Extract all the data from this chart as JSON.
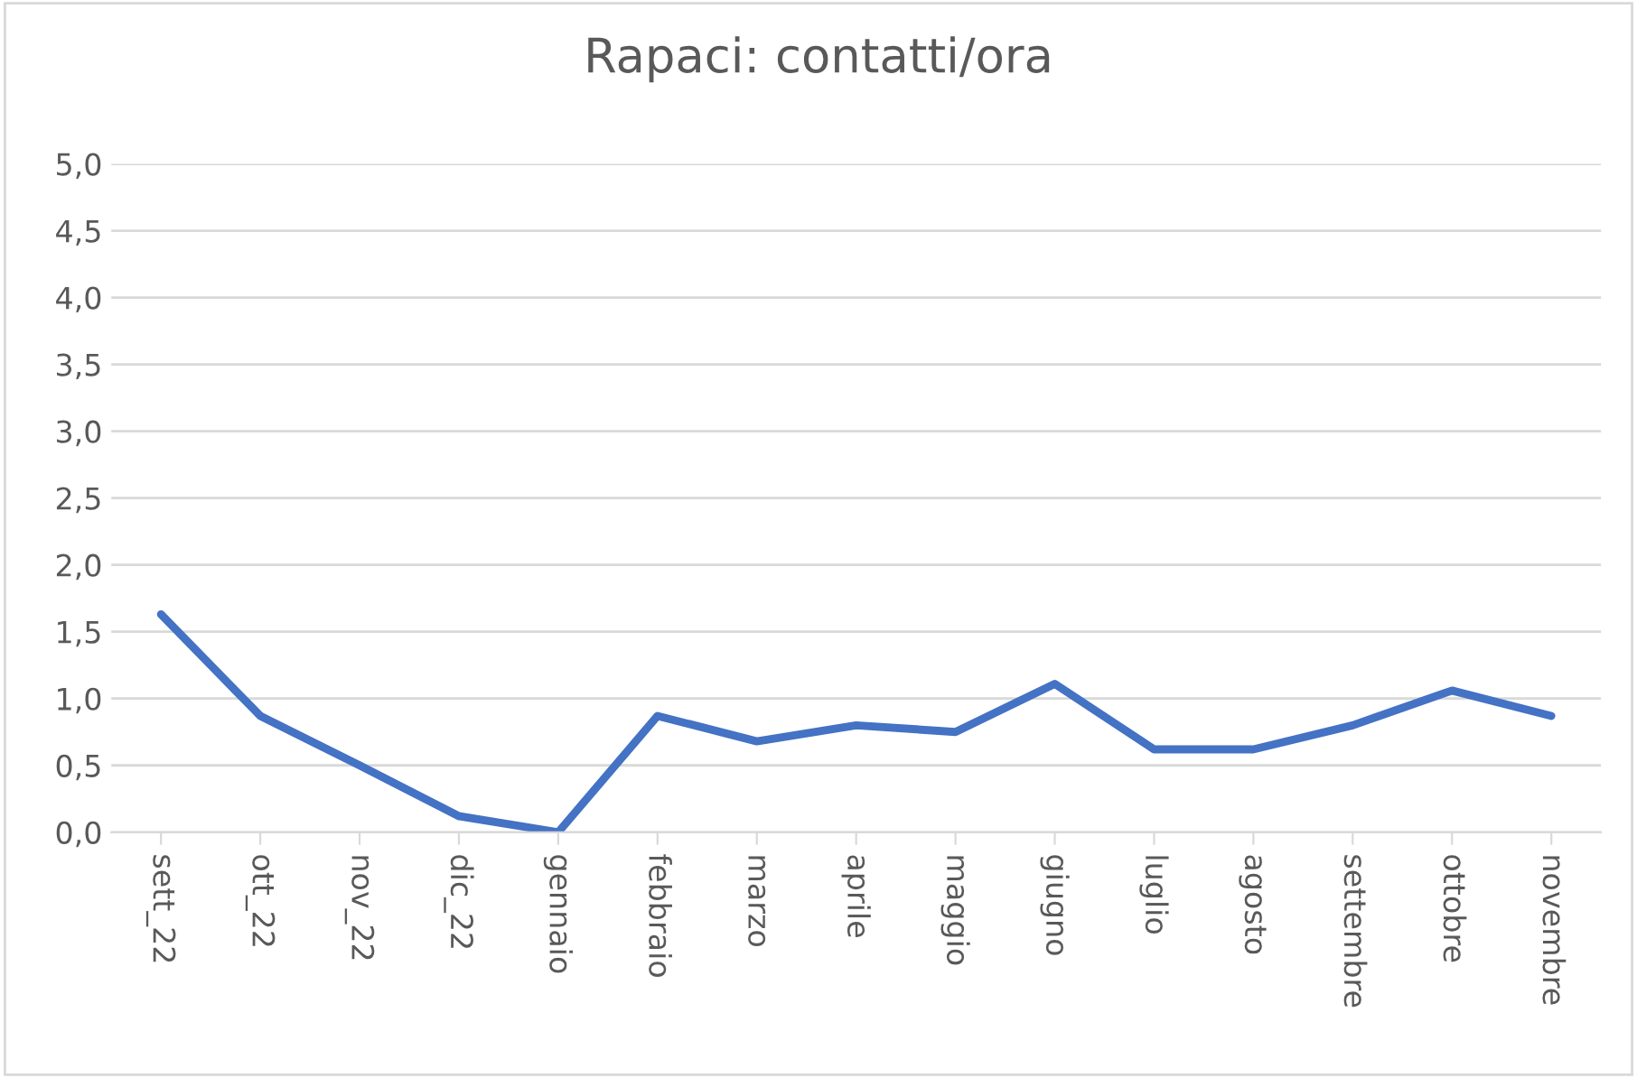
{
  "chart_data": {
    "type": "line",
    "title": "Rapaci: contatti/ora",
    "categories": [
      "sett_22",
      "ott_22",
      "nov_22",
      "dic_22",
      "gennaio",
      "febbraio",
      "marzo",
      "aprile",
      "maggio",
      "giugno",
      "luglio",
      "agosto",
      "settembre",
      "ottobre",
      "novembre"
    ],
    "series": [
      {
        "color": "#4472c4",
        "values": [
          1.63,
          0.87,
          0.5,
          0.12,
          0.0,
          0.87,
          0.68,
          0.8,
          0.75,
          1.11,
          0.62,
          0.62,
          0.8,
          1.06,
          0.87
        ]
      }
    ],
    "ylim": [
      0,
      5
    ],
    "yticks": [
      {
        "value": 0,
        "label": "0,0"
      },
      {
        "value": 0.5,
        "label": "0,5"
      },
      {
        "value": 1,
        "label": "1,0"
      },
      {
        "value": 1.5,
        "label": "1,5"
      },
      {
        "value": 2,
        "label": "2,0"
      },
      {
        "value": 2.5,
        "label": "2,5"
      },
      {
        "value": 3,
        "label": "3,0"
      },
      {
        "value": 3.5,
        "label": "3,5"
      },
      {
        "value": 4,
        "label": "4,0"
      },
      {
        "value": 4.5,
        "label": "4,5"
      },
      {
        "value": 5,
        "label": "5,0"
      }
    ],
    "grid": "y",
    "marker": "none",
    "line_style": "solid"
  }
}
